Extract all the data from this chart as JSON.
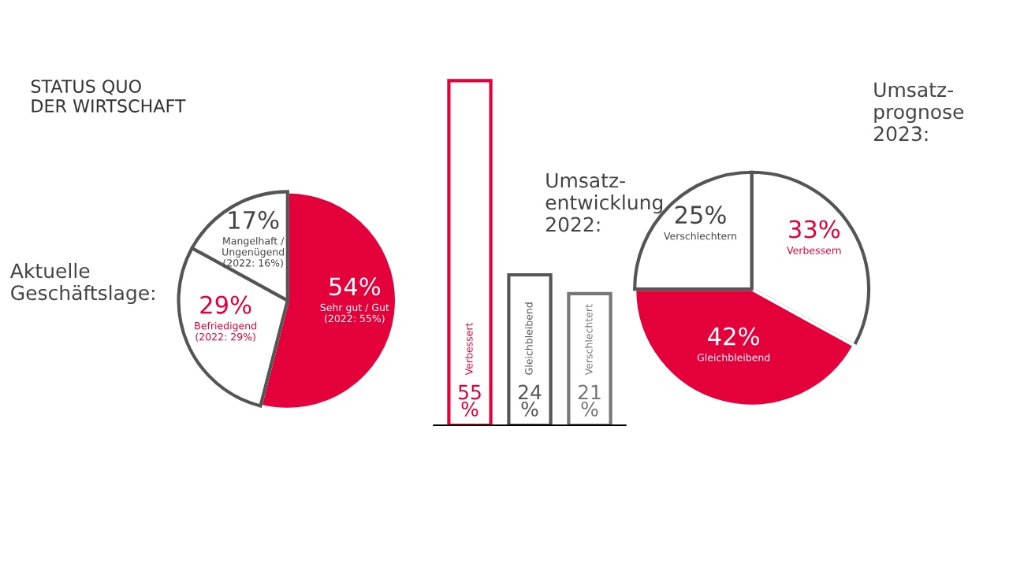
{
  "chart_data": [
    {
      "type": "pie",
      "title": "STATUS QUO\nDER WIRTSCHAFT",
      "subtitle": "Aktuelle\nGeschäftslage:",
      "categories": [
        "Sehr gut / Gut",
        "Befriedigend",
        "Mangelhaft /\nUngenügend"
      ],
      "values": [
        54,
        29,
        17
      ],
      "colors": [
        "#e4003a",
        "#ffffff",
        "#ffffff"
      ],
      "value_labels": [
        "54%",
        "29%",
        "17%"
      ],
      "annotations": [
        "(2022: 55%)",
        "(2022: 29%)",
        "(2022: 16%)"
      ]
    },
    {
      "type": "bar",
      "title": "Umsatz-\nentwicklung\n2022:",
      "categories": [
        "Verbessert",
        "Gleichbleibend",
        "Verschlechtert"
      ],
      "values": [
        55,
        24,
        21
      ],
      "colors": [
        "#e4003a",
        "#555555",
        "#777777"
      ],
      "value_labels": [
        "55\n%",
        "24\n%",
        "21\n%"
      ]
    },
    {
      "type": "pie",
      "title": "Umsatz-\nprognose\n2023:",
      "categories": [
        "Verbessern",
        "Gleichbleibend",
        "Verschlechtern"
      ],
      "values": [
        33,
        42,
        25
      ],
      "colors": [
        "#ffffff",
        "#e4003a",
        "#ffffff"
      ],
      "value_labels": [
        "33%",
        "42%",
        "25%"
      ]
    }
  ]
}
